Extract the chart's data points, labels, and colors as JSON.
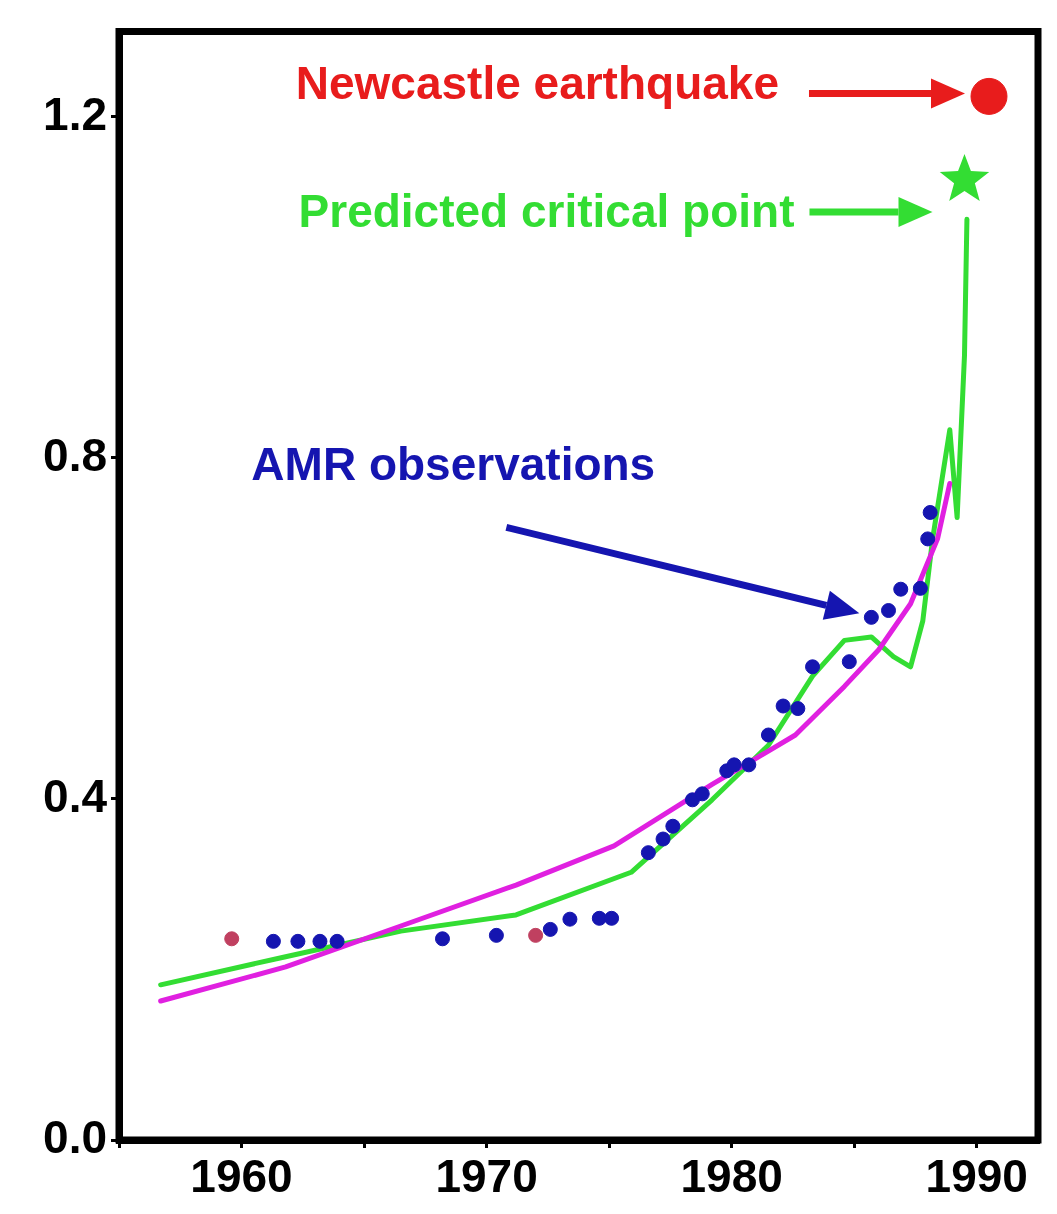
{
  "chart_data": {
    "type": "scatter",
    "xlim": [
      1955,
      1992.5
    ],
    "ylim": [
      0,
      1.3
    ],
    "xticks": [
      {
        "value": 1955,
        "label": null
      },
      1960,
      {
        "value": 1965,
        "label": null
      },
      1970,
      {
        "value": 1975,
        "label": null
      },
      1980,
      {
        "value": 1985,
        "label": null
      },
      1990
    ],
    "yticks": [
      {
        "value": 0,
        "label": "0.0"
      },
      {
        "value": 0.4,
        "label": "0.4"
      },
      {
        "value": 0.8,
        "label": "0.8"
      },
      {
        "value": 1.2,
        "label": "1.2"
      }
    ],
    "grid": false,
    "legend": false,
    "annotations": [
      "AMR observations",
      "Newcastle earthquake",
      "Predicted critical point"
    ],
    "series": [
      {
        "type": "line",
        "color": "#e020e0",
        "line_style": "solid",
        "marker": "none",
        "x": [
          1956.7,
          1961.8,
          1966.5,
          1971.2,
          1975.2,
          1979.2,
          1982.6,
          1984.6,
          1986.0,
          1987.3,
          1988.4,
          1988.9
        ],
        "values": [
          0.163,
          0.203,
          0.251,
          0.299,
          0.345,
          0.417,
          0.475,
          0.532,
          0.575,
          0.629,
          0.705,
          0.77
        ]
      },
      {
        "type": "line",
        "color": "#33dd33",
        "line_style": "solid",
        "marker": "none",
        "x": [
          1956.7,
          1961.8,
          1966.5,
          1971.2,
          1975.9,
          1979.2,
          1981.5,
          1983.3,
          1984.6,
          1985.7,
          1986.6,
          1987.3,
          1987.8,
          1988.2,
          1988.9,
          1989.2,
          1989.5,
          1989.6
        ],
        "values": [
          0.182,
          0.215,
          0.245,
          0.264,
          0.314,
          0.399,
          0.463,
          0.544,
          0.586,
          0.59,
          0.567,
          0.555,
          0.609,
          0.705,
          0.833,
          0.73,
          0.92,
          1.08
        ]
      },
      {
        "color": "#1515b0",
        "marker": "circle",
        "x": [
          1959.6,
          1961.3,
          1962.3,
          1963.2,
          1963.9,
          1968.2,
          1970.4,
          1972.0,
          1972.6,
          1973.4,
          1974.6,
          1975.1,
          1976.6,
          1977.2,
          1977.6,
          1978.4,
          1978.8,
          1979.8,
          1980.1,
          1980.7,
          1981.5,
          1982.1,
          1982.7,
          1983.3,
          1984.8,
          1985.7,
          1986.4,
          1986.9,
          1987.7,
          1988.0,
          1988.1
        ],
        "values": [
          0.236,
          0.233,
          0.233,
          0.233,
          0.233,
          0.236,
          0.24,
          0.24,
          0.247,
          0.259,
          0.26,
          0.26,
          0.337,
          0.353,
          0.368,
          0.399,
          0.406,
          0.433,
          0.44,
          0.44,
          0.475,
          0.509,
          0.506,
          0.555,
          0.561,
          0.613,
          0.621,
          0.646,
          0.647,
          0.705,
          0.736
        ],
        "colors": [
          "#c04060",
          "#1515b0",
          "#1515b0",
          "#1515b0",
          "#1515b0",
          "#1515b0",
          "#1515b0",
          "#c04060",
          "#1515b0",
          "#1515b0",
          "#1515b0",
          "#1515b0",
          "#1515b0",
          "#1515b0",
          "#1515b0",
          "#1515b0",
          "#1515b0",
          "#1515b0",
          "#1515b0",
          "#1515b0",
          "#1515b0",
          "#1515b0",
          "#1515b0",
          "#1515b0",
          "#1515b0",
          "#1515b0",
          "#1515b0",
          "#1515b0",
          "#1515b0",
          "#1515b0",
          "#1515b0"
        ]
      },
      {
        "color": "#e81c1c",
        "marker": "circle",
        "x": [
          1990.5
        ],
        "values": [
          1.224
        ]
      },
      {
        "color": "#33dd33",
        "marker": "star",
        "x": [
          1989.5
        ],
        "values": [
          1.126
        ]
      }
    ]
  }
}
